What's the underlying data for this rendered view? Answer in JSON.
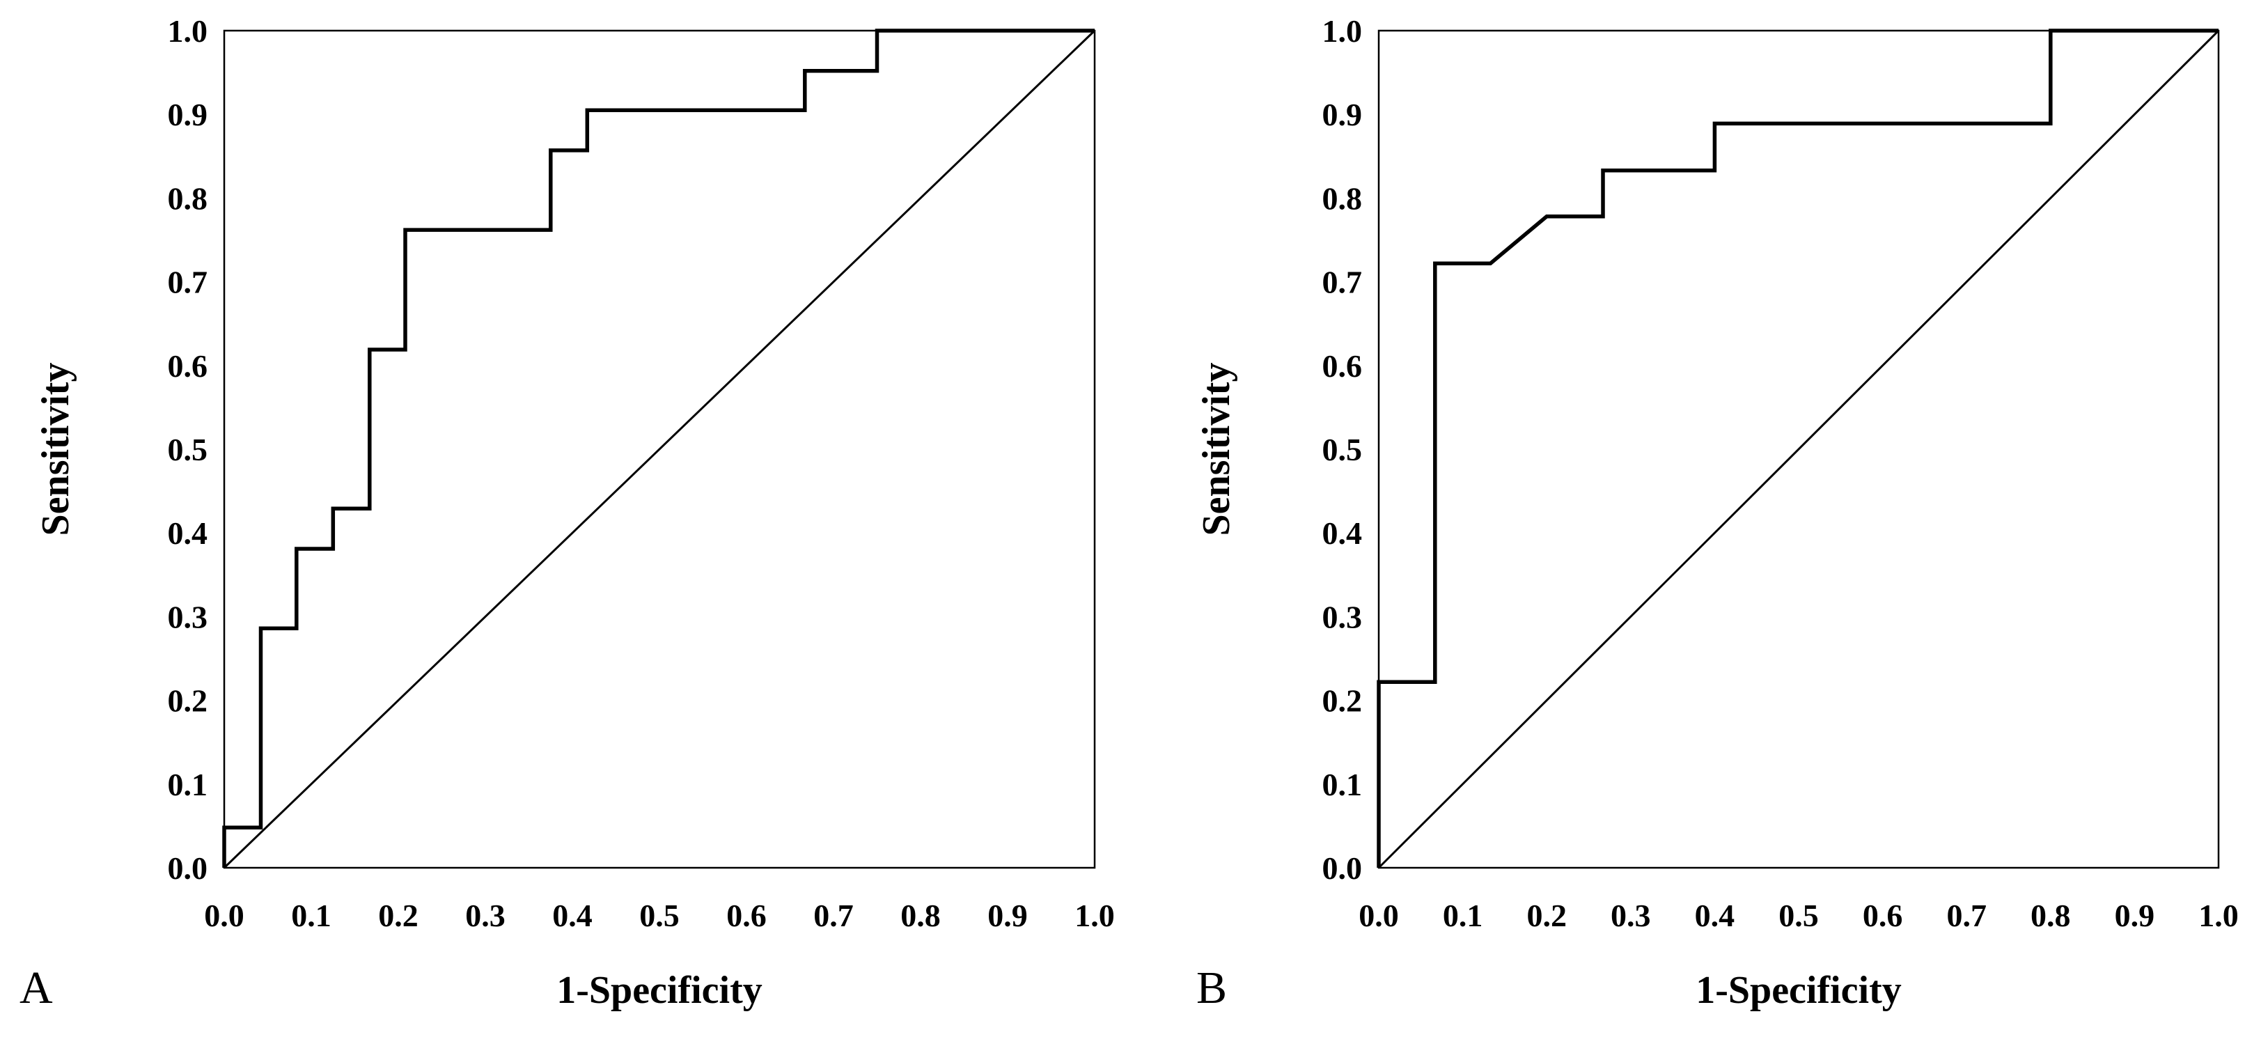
{
  "chart_data": [
    {
      "panel": "A",
      "type": "line",
      "title": "",
      "xlabel": "1-Specificity",
      "ylabel": "Sensitivity",
      "xlim": [
        0,
        1
      ],
      "ylim": [
        0,
        1
      ],
      "grid": false,
      "xticks": [
        "0.0",
        "0.1",
        "0.2",
        "0.3",
        "0.4",
        "0.5",
        "0.6",
        "0.7",
        "0.8",
        "0.9",
        "1.0"
      ],
      "yticks": [
        "0.0",
        "0.1",
        "0.2",
        "0.3",
        "0.4",
        "0.5",
        "0.6",
        "0.7",
        "0.8",
        "0.9",
        "1.0"
      ],
      "series": [
        {
          "type": "step",
          "x": [
            0.0,
            0.0,
            0.042,
            0.042,
            0.083,
            0.083,
            0.125,
            0.125,
            0.167,
            0.167,
            0.208,
            0.208,
            0.375,
            0.375,
            0.417,
            0.417,
            0.667,
            0.667,
            0.75,
            0.75,
            1.0
          ],
          "y": [
            0.0,
            0.048,
            0.048,
            0.286,
            0.286,
            0.381,
            0.381,
            0.429,
            0.429,
            0.619,
            0.619,
            0.762,
            0.762,
            0.857,
            0.857,
            0.905,
            0.905,
            0.952,
            0.952,
            1.0,
            1.0
          ]
        },
        {
          "type": "reference",
          "x": [
            0,
            1
          ],
          "y": [
            0,
            1
          ]
        }
      ]
    },
    {
      "panel": "B",
      "type": "line",
      "title": "",
      "xlabel": "1-Specificity",
      "ylabel": "Sensitivity",
      "xlim": [
        0,
        1
      ],
      "ylim": [
        0,
        1
      ],
      "grid": false,
      "xticks": [
        "0.0",
        "0.1",
        "0.2",
        "0.3",
        "0.4",
        "0.5",
        "0.6",
        "0.7",
        "0.8",
        "0.9",
        "1.0"
      ],
      "yticks": [
        "0.0",
        "0.1",
        "0.2",
        "0.3",
        "0.4",
        "0.5",
        "0.6",
        "0.7",
        "0.8",
        "0.9",
        "1.0"
      ],
      "series": [
        {
          "type": "step",
          "x": [
            0.0,
            0.0,
            0.067,
            0.067,
            0.133,
            0.2,
            0.267,
            0.267,
            0.4,
            0.4,
            0.8,
            0.8,
            1.0
          ],
          "y": [
            0.0,
            0.222,
            0.222,
            0.722,
            0.722,
            0.778,
            0.778,
            0.833,
            0.833,
            0.889,
            0.889,
            1.0,
            1.0
          ]
        },
        {
          "type": "reference",
          "x": [
            0,
            1
          ],
          "y": [
            0,
            1
          ]
        }
      ]
    }
  ]
}
